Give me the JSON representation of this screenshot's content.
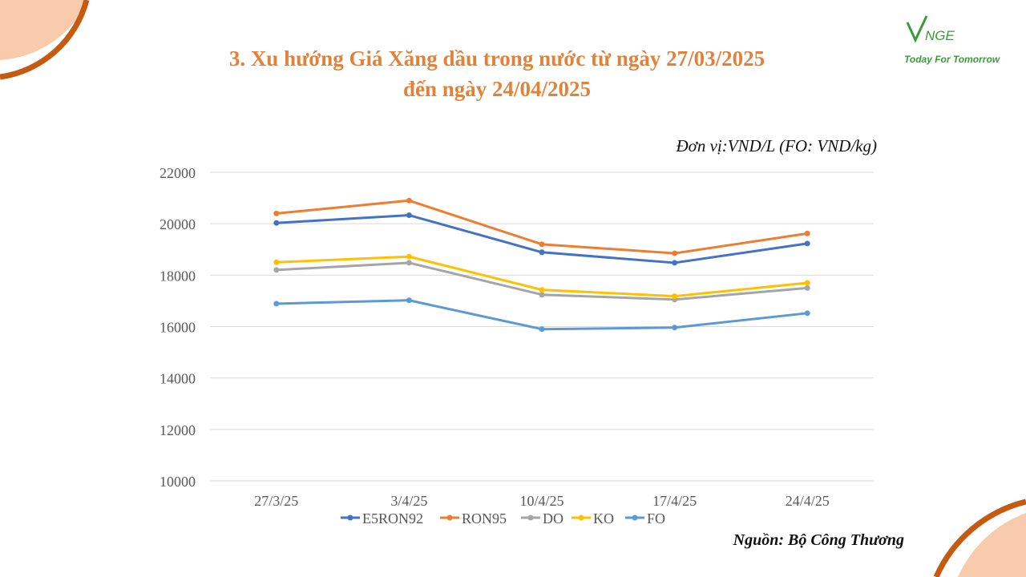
{
  "title_line1": "3. Xu hướng Giá Xăng dầu trong nước từ ngày 27/03/2025",
  "title_line2": "đến ngày 24/04/2025",
  "unit_note": "Đơn vị:VND/L (FO: VND/kg)",
  "source_note": "Nguồn: Bộ Công Thương",
  "logo": {
    "text": "NGE",
    "tagline": "Today For Tomorrow"
  },
  "colors": {
    "title": "#E2823A",
    "decor_orange": "#C55A11",
    "decor_peach": "#F8CBAD",
    "logo_green": "#3a9b3a"
  },
  "chart_data": {
    "type": "line",
    "categories": [
      "27/3/25",
      "3/4/25",
      "10/4/25",
      "17/4/25",
      "24/4/25"
    ],
    "ylim": [
      10000,
      22000
    ],
    "yticks": [
      "10000",
      "12000",
      "14000",
      "16000",
      "18000",
      "20000",
      "22000"
    ],
    "grid": true,
    "legend_position": "bottom",
    "series": [
      {
        "name": "E5RON92",
        "color": "#4472C4",
        "values": [
          20030,
          20330,
          18890,
          18480,
          19230
        ]
      },
      {
        "name": "RON95",
        "color": "#ED7D31",
        "values": [
          20400,
          20900,
          19200,
          18850,
          19620
        ]
      },
      {
        "name": "DO",
        "color": "#A5A5A5",
        "values": [
          18200,
          18480,
          17240,
          17050,
          17500
        ]
      },
      {
        "name": "KO",
        "color": "#FFC000",
        "values": [
          18500,
          18720,
          17430,
          17180,
          17700
        ]
      },
      {
        "name": "FO",
        "color": "#5B9BD5",
        "values": [
          16890,
          17020,
          15900,
          15960,
          16520
        ]
      }
    ]
  }
}
